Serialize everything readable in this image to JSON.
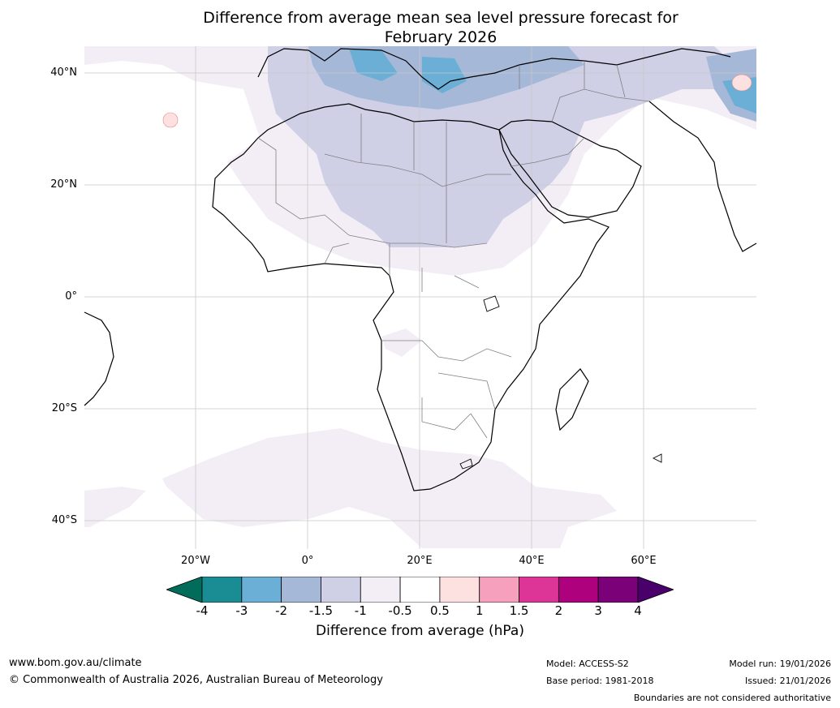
{
  "title": {
    "line1": "Difference from average mean sea level pressure forecast for",
    "line2": "February 2026"
  },
  "latitude_labels": [
    "40°N",
    "20°N",
    "0°",
    "20°S",
    "40°S"
  ],
  "longitude_labels": [
    "20°W",
    "0°",
    "20°E",
    "40°E",
    "60°E"
  ],
  "colorbar": {
    "ticks": [
      "-4",
      "-3",
      "-2",
      "-1.5",
      "-1",
      "-0.5",
      "0.5",
      "1",
      "1.5",
      "2",
      "3",
      "4"
    ],
    "colors": [
      "#1a8c94",
      "#6baed6",
      "#a6b8d8",
      "#cfd0e6",
      "#f3eef5",
      "#ffffff",
      "#fde0e0",
      "#f7a0bd",
      "#dd3497",
      "#ae017e",
      "#7a0177"
    ],
    "under_color": "#016c59",
    "over_color": "#49006a",
    "label": "Difference from average (hPa)"
  },
  "footer": {
    "website": "www.bom.gov.au/climate",
    "copyright": "© Commonwealth of Australia 2026, Australian Bureau of Meteorology",
    "model": "Model: ACCESS-S2",
    "base_period": "Base period: 1981-2018",
    "model_run": "Model run: 19/01/2026",
    "issued": "Issued: 21/01/2026",
    "disclaimer": "Boundaries are not considered authoritative"
  }
}
